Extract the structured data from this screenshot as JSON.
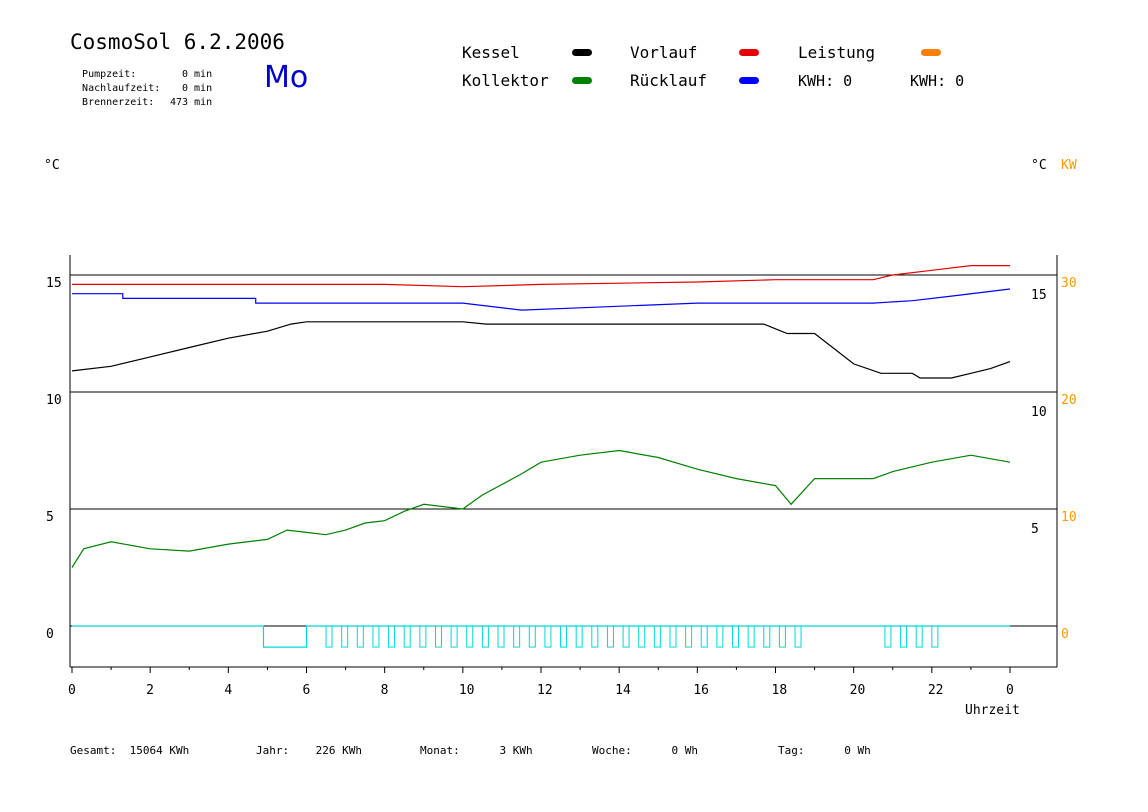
{
  "header": {
    "title": "CosmoSol 6.2.2006",
    "day": "Mo",
    "stats": [
      {
        "label": "Pumpzeit:",
        "value": "0 min"
      },
      {
        "label": "Nachlaufzeit:",
        "value": "0 min"
      },
      {
        "label": "Brennerzeit:",
        "value": "473 min"
      }
    ]
  },
  "legend": [
    {
      "name": "Kessel",
      "color": "#000000"
    },
    {
      "name": "Kollektor",
      "color": "#008000"
    },
    {
      "name": "Vorlauf",
      "color": "#e60000"
    },
    {
      "name": "Rücklauf",
      "color": "#0000ff"
    },
    {
      "name": "Leistung",
      "color": "#ff8000"
    }
  ],
  "kwh": [
    {
      "text": "KWH: 0",
      "color": "#ff9900"
    },
    {
      "text": "KWH: 0",
      "color": "#990099"
    }
  ],
  "units": {
    "left": "°C",
    "right_temp": "°C",
    "right_power": "KW"
  },
  "footer": [
    {
      "label": "Gesamt:",
      "value": "15064 KWh"
    },
    {
      "label": "Jahr:",
      "value": "226 KWh"
    },
    {
      "label": "Monat:",
      "value": "3 KWh"
    },
    {
      "label": "Woche:",
      "value": "0 Wh"
    },
    {
      "label": "Tag:",
      "value": "0 Wh"
    }
  ],
  "chart_data": {
    "type": "line",
    "xlabel": "Uhrzeit",
    "x_ticks": [
      "0",
      "2",
      "4",
      "6",
      "8",
      "10",
      "12",
      "14",
      "16",
      "18",
      "20",
      "22",
      "0"
    ],
    "y_ticks_left": [
      "15",
      "10",
      "5",
      "0"
    ],
    "y_ticks_right_temp": [
      "15",
      "10",
      "5"
    ],
    "y_ticks_right_power": [
      "30",
      "20",
      "10",
      "0"
    ],
    "xlim": [
      0,
      24
    ],
    "ylim": [
      -1.8,
      16
    ],
    "grid": "horizontal",
    "series": [
      {
        "name": "Vorlauf",
        "color": "#e60000",
        "points": [
          [
            0,
            14.6
          ],
          [
            4,
            14.6
          ],
          [
            8,
            14.6
          ],
          [
            10,
            14.5
          ],
          [
            12,
            14.6
          ],
          [
            16,
            14.7
          ],
          [
            18,
            14.8
          ],
          [
            20.5,
            14.8
          ],
          [
            21,
            15.0
          ],
          [
            22,
            15.2
          ],
          [
            23,
            15.4
          ],
          [
            24,
            15.4
          ]
        ]
      },
      {
        "name": "Rücklauf",
        "color": "#0000ff",
        "points": [
          [
            0,
            14.2
          ],
          [
            1.3,
            14.2
          ],
          [
            1.3,
            14.0
          ],
          [
            4.7,
            14.0
          ],
          [
            4.7,
            13.8
          ],
          [
            10,
            13.8
          ],
          [
            11.5,
            13.5
          ],
          [
            13,
            13.6
          ],
          [
            16,
            13.8
          ],
          [
            20.5,
            13.8
          ],
          [
            21.5,
            13.9
          ],
          [
            22.5,
            14.1
          ],
          [
            23.5,
            14.3
          ],
          [
            24,
            14.4
          ]
        ]
      },
      {
        "name": "Kessel",
        "color": "#000000",
        "points": [
          [
            0,
            10.9
          ],
          [
            1,
            11.1
          ],
          [
            2,
            11.5
          ],
          [
            3,
            11.9
          ],
          [
            4,
            12.3
          ],
          [
            5,
            12.6
          ],
          [
            5.6,
            12.9
          ],
          [
            6,
            13.0
          ],
          [
            10,
            13.0
          ],
          [
            10.6,
            12.9
          ],
          [
            17.7,
            12.9
          ],
          [
            18,
            12.7
          ],
          [
            18.3,
            12.5
          ],
          [
            19,
            12.5
          ],
          [
            20,
            11.2
          ],
          [
            20.7,
            10.8
          ],
          [
            21.5,
            10.8
          ],
          [
            21.7,
            10.6
          ],
          [
            22.5,
            10.6
          ],
          [
            23,
            10.8
          ],
          [
            23.5,
            11.0
          ],
          [
            24,
            11.3
          ]
        ]
      },
      {
        "name": "Kollektor",
        "color": "#008000",
        "points": [
          [
            0,
            2.5
          ],
          [
            0.3,
            3.3
          ],
          [
            1,
            3.6
          ],
          [
            2,
            3.3
          ],
          [
            3,
            3.2
          ],
          [
            4,
            3.5
          ],
          [
            5,
            3.7
          ],
          [
            5.5,
            4.1
          ],
          [
            6,
            4.0
          ],
          [
            6.5,
            3.9
          ],
          [
            7,
            4.1
          ],
          [
            7.5,
            4.4
          ],
          [
            8,
            4.5
          ],
          [
            8.5,
            4.9
          ],
          [
            9,
            5.2
          ],
          [
            10,
            5.0
          ],
          [
            10.5,
            5.6
          ],
          [
            11.5,
            6.5
          ],
          [
            12,
            7.0
          ],
          [
            13,
            7.3
          ],
          [
            14,
            7.5
          ],
          [
            15,
            7.2
          ],
          [
            16,
            6.7
          ],
          [
            17,
            6.3
          ],
          [
            18,
            6.0
          ],
          [
            18.4,
            5.2
          ],
          [
            19,
            6.3
          ],
          [
            20.5,
            6.3
          ],
          [
            21,
            6.6
          ],
          [
            22,
            7.0
          ],
          [
            23,
            7.3
          ],
          [
            24,
            7.0
          ]
        ]
      },
      {
        "name": "Pumpe",
        "color": "#00d8d8",
        "points": [
          [
            0,
            0
          ],
          [
            4.9,
            0
          ],
          [
            4.9,
            -0.9
          ],
          [
            6,
            -0.9
          ],
          [
            6,
            0
          ],
          [
            24,
            0
          ]
        ]
      }
    ],
    "pump_pulses_x": [
      6.5,
      6.9,
      7.3,
      7.7,
      8.1,
      8.5,
      8.9,
      9.3,
      9.7,
      10.1,
      10.5,
      10.9,
      11.3,
      11.7,
      12.1,
      12.5,
      12.9,
      13.3,
      13.7,
      14.1,
      14.5,
      14.9,
      15.3,
      15.7,
      16.1,
      16.5,
      16.9,
      17.3,
      17.7,
      18.1,
      18.5,
      20.8,
      21.2,
      21.6,
      22.0
    ]
  }
}
